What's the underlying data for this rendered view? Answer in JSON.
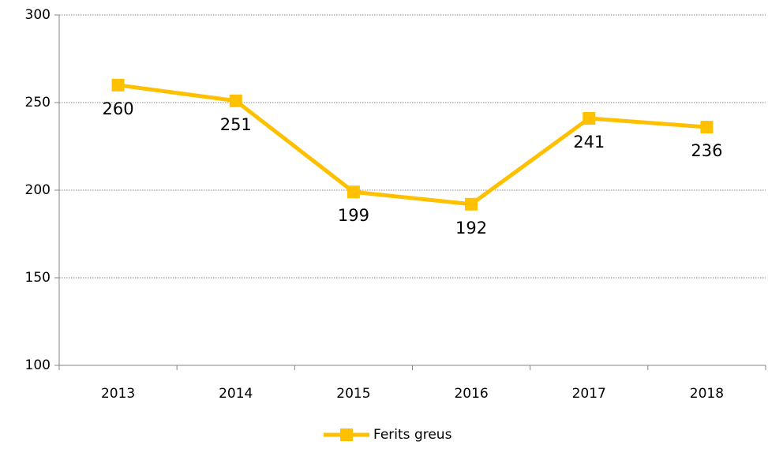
{
  "chart_data": {
    "type": "line",
    "categories": [
      "2013",
      "2014",
      "2015",
      "2016",
      "2017",
      "2018"
    ],
    "series": [
      {
        "name": "Ferits greus",
        "color": "#ffc000",
        "values": [
          260,
          251,
          199,
          192,
          241,
          236
        ]
      }
    ],
    "ylim": [
      100,
      300
    ],
    "yticks": [
      100,
      150,
      200,
      250,
      300
    ],
    "grid": true,
    "legend": "bottom"
  }
}
